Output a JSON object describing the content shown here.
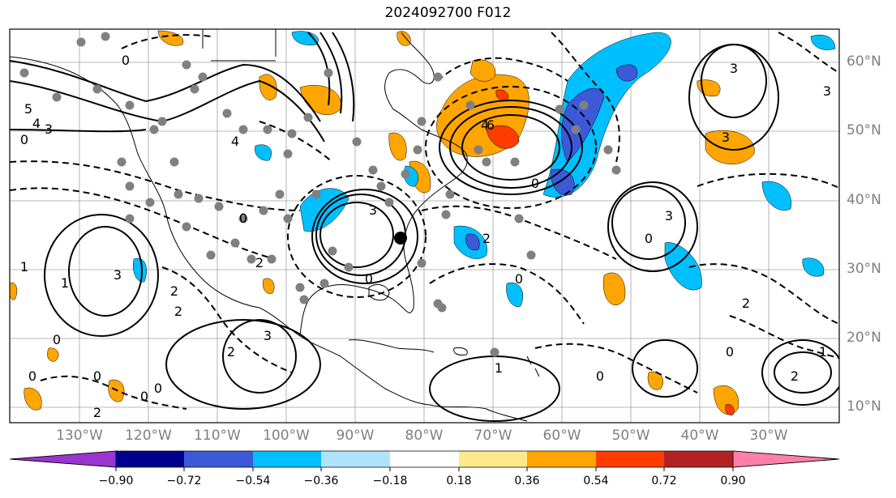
{
  "title": "2024092700 F012",
  "lon_labels": [
    "130°W",
    "120°W",
    "110°W",
    "100°W",
    "90°W",
    "80°W",
    "70°W",
    "60°W",
    "50°W",
    "40°W",
    "30°W"
  ],
  "lat_labels": [
    "60°N",
    "50°N",
    "40°N",
    "30°N",
    "20°N",
    "10°N"
  ],
  "colorbar": {
    "tick_labels": [
      "−0.90",
      "−0.72",
      "−0.54",
      "−0.36",
      "−0.18",
      "0.18",
      "0.36",
      "0.54",
      "0.72",
      "0.90"
    ],
    "colors": [
      "#9a35d0",
      "#00008c",
      "#3c5ad8",
      "#00bfff",
      "#aee4fb",
      "#ffffff",
      "#fde98a",
      "#ffa500",
      "#ff3c00",
      "#b22222",
      "#ff7fa8"
    ]
  },
  "shading_colors": {
    "orange": "#ffa500",
    "red": "#ff3c00",
    "cyan": "#00bfff",
    "blue": "#3c5ad8"
  },
  "contour_labels": [
    "0",
    "1",
    "2",
    "3",
    "4",
    "5",
    "6"
  ],
  "region": "North Atlantic and North America"
}
